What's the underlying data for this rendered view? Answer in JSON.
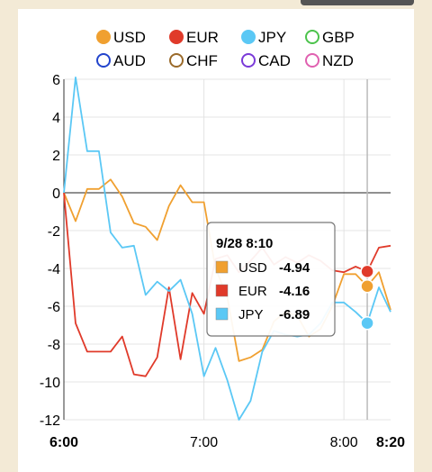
{
  "chart_data": {
    "type": "line",
    "x": [
      "6:00",
      "6:05",
      "6:10",
      "6:15",
      "6:20",
      "6:25",
      "6:30",
      "6:35",
      "6:40",
      "6:45",
      "6:50",
      "6:55",
      "7:00",
      "7:05",
      "7:10",
      "7:15",
      "7:20",
      "7:25",
      "7:30",
      "7:35",
      "7:40",
      "7:45",
      "7:50",
      "7:55",
      "8:00",
      "8:05",
      "8:10",
      "8:15",
      "8:20"
    ],
    "series": [
      {
        "name": "USD",
        "color": "#f0a030",
        "values": [
          0,
          -1.5,
          0.2,
          0.2,
          0.7,
          -0.2,
          -1.6,
          -1.8,
          -2.5,
          -0.7,
          0.4,
          -0.5,
          -0.5,
          -4.0,
          -5.5,
          -8.9,
          -8.7,
          -8.3,
          -6.8,
          -6.3,
          -6.5,
          -7.6,
          -7.2,
          -6.0,
          -4.3,
          -4.3,
          -4.94,
          -4.2,
          -6.2
        ]
      },
      {
        "name": "EUR",
        "color": "#e03a2a",
        "values": [
          0,
          -6.9,
          -8.4,
          -8.4,
          -8.4,
          -7.6,
          -9.6,
          -9.7,
          -8.7,
          -5.0,
          -8.8,
          -5.3,
          -6.4,
          -3.5,
          -3.3,
          -4.2,
          -3.6,
          -2.9,
          -3.8,
          -3.4,
          -3.7,
          -3.3,
          -3.6,
          -4.1,
          -4.2,
          -3.9,
          -4.16,
          -2.9,
          -2.8
        ]
      },
      {
        "name": "JPY",
        "color": "#5bc8f5",
        "values": [
          0,
          6.1,
          2.2,
          2.2,
          -2.1,
          -2.9,
          -2.8,
          -5.4,
          -4.7,
          -5.2,
          -4.6,
          -6.4,
          -9.7,
          -8.2,
          -9.9,
          -12.0,
          -11.0,
          -8.4,
          -7.3,
          -7.5,
          -7.6,
          -7.5,
          -6.9,
          -5.8,
          -5.8,
          -6.3,
          -6.89,
          -5.0,
          -6.3
        ]
      }
    ],
    "legend": [
      {
        "name": "USD",
        "color": "#f0a030",
        "filled": true
      },
      {
        "name": "EUR",
        "color": "#e03a2a",
        "filled": true
      },
      {
        "name": "JPY",
        "color": "#5bc8f5",
        "filled": true
      },
      {
        "name": "GBP",
        "color": "#4cc34c",
        "filled": false
      },
      {
        "name": "AUD",
        "color": "#2244cc",
        "filled": false
      },
      {
        "name": "CHF",
        "color": "#9a6a2a",
        "filled": false
      },
      {
        "name": "CAD",
        "color": "#7a3ad8",
        "filled": false
      },
      {
        "name": "NZD",
        "color": "#e060b0",
        "filled": false
      }
    ],
    "y_ticks": [
      "6",
      "4",
      "2",
      "0",
      "-2",
      "-4",
      "-6",
      "-8",
      "-10",
      "-12"
    ],
    "x_ticks": [
      {
        "label": "6:00",
        "bold": true
      },
      {
        "label": "7:00",
        "bold": false
      },
      {
        "label": "8:00",
        "bold": false
      },
      {
        "label": "8:20",
        "bold": true
      }
    ],
    "ylim": [
      -12,
      6
    ],
    "legend_position": "top",
    "grid": true
  },
  "tooltip": {
    "title": "9/28 8:10",
    "rows": [
      {
        "name": "USD",
        "value": "-4.94",
        "color": "#f0a030"
      },
      {
        "name": "EUR",
        "value": "-4.16",
        "color": "#e03a2a"
      },
      {
        "name": "JPY",
        "value": "-6.89",
        "color": "#5bc8f5"
      }
    ]
  }
}
